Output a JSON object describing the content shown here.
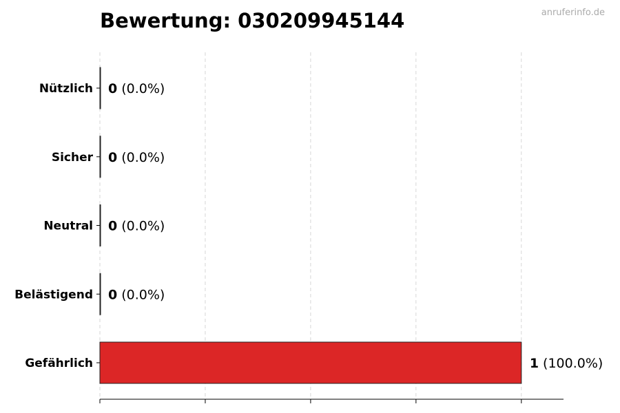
{
  "chart_data": {
    "type": "bar",
    "orientation": "horizontal",
    "title": "Bewertung: 030209945144",
    "watermark": "anruferinfo.de",
    "categories": [
      "Nützlich",
      "Sicher",
      "Neutral",
      "Belästigend",
      "Gefährlich"
    ],
    "values": [
      0,
      0,
      0,
      0,
      1
    ],
    "percent_labels": [
      "(0.0%)",
      "(0.0%)",
      "(0.0%)",
      "(0.0%)",
      "(100.0%)"
    ],
    "colors": [
      "#2e7d32",
      "#4caf50",
      "#9e9e9e",
      "#ff9800",
      "#dc2626"
    ],
    "xlim": [
      0,
      1.1
    ],
    "xticks": [
      0,
      0.25,
      0.5,
      0.75,
      1
    ],
    "xtick_labels_shown": false,
    "grid": "x-dashed",
    "xlabel": "",
    "ylabel": ""
  }
}
